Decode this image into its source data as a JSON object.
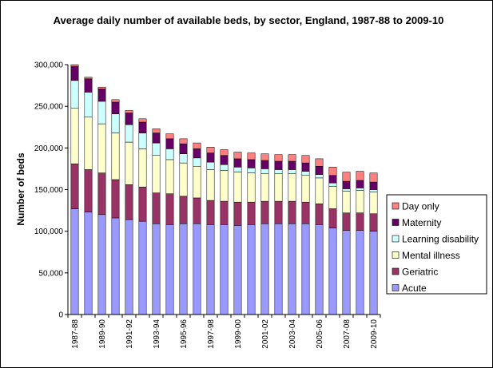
{
  "chart_data": {
    "type": "bar",
    "stacked": true,
    "title": "Average daily number of available beds, by sector, England, 1987-88 to 2009-10",
    "xlabel": "",
    "ylabel": "Number of beds",
    "ylim": [
      0,
      300000
    ],
    "yticks": [
      0,
      50000,
      100000,
      150000,
      200000,
      250000,
      300000
    ],
    "ytick_labels": [
      "0",
      "50,000",
      "100,000",
      "150,000",
      "200,000",
      "250,000",
      "300,000"
    ],
    "categories": [
      "1987-88",
      "1988-89",
      "1989-90",
      "1990-91",
      "1991-92",
      "1992-93",
      "1993-94",
      "1994-95",
      "1995-96",
      "1996-97",
      "1997-98",
      "1998-99",
      "1999-00",
      "2000-01",
      "2001-02",
      "2002-03",
      "2003-04",
      "2004-05",
      "2005-06",
      "2006-07",
      "2007-08",
      "2008-09",
      "2009-10"
    ],
    "shown_tick_labels": [
      "1987-88",
      "1989-90",
      "1991-92",
      "1993-94",
      "1995-96",
      "1997-98",
      "1999-00",
      "2001-02",
      "2003-04",
      "2005-06",
      "2007-08",
      "2009-10"
    ],
    "grid": false,
    "legend_position": "right",
    "series": [
      {
        "name": "Acute",
        "color": "#9999ff",
        "values": [
          127000,
          123000,
          120000,
          116000,
          114000,
          112000,
          109000,
          108000,
          109000,
          109000,
          108000,
          108000,
          107000,
          108000,
          109000,
          109000,
          109000,
          109000,
          108000,
          104000,
          101000,
          101000,
          100000
        ]
      },
      {
        "name": "Geriatric",
        "color": "#993366",
        "values": [
          54000,
          51000,
          50000,
          46000,
          42000,
          41000,
          37000,
          37000,
          33000,
          31000,
          29000,
          28000,
          28000,
          27000,
          27000,
          27000,
          27000,
          26000,
          25000,
          23000,
          21000,
          21000,
          21000
        ]
      },
      {
        "name": "Mental illness",
        "color": "#ffffcc",
        "values": [
          67000,
          63000,
          59000,
          56000,
          51000,
          46000,
          45000,
          41000,
          40000,
          38000,
          37000,
          37000,
          36000,
          35000,
          33000,
          33000,
          33000,
          32000,
          31000,
          27000,
          26000,
          27000,
          26000
        ]
      },
      {
        "name": "Learning disability",
        "color": "#ccffff",
        "values": [
          33000,
          30000,
          27000,
          23000,
          21000,
          19000,
          15000,
          13000,
          11000,
          10000,
          9000,
          7000,
          6000,
          6000,
          6000,
          5000,
          5000,
          5000,
          4000,
          4000,
          3000,
          3000,
          3000
        ]
      },
      {
        "name": "Maternity",
        "color": "#660066",
        "values": [
          17000,
          16000,
          15000,
          14000,
          14000,
          13000,
          12000,
          12000,
          12000,
          11000,
          11000,
          11000,
          10000,
          10000,
          10000,
          10000,
          10000,
          10000,
          10000,
          9000,
          9000,
          9000,
          9000
        ]
      },
      {
        "name": "Day only",
        "color": "#ff8080",
        "values": [
          2000,
          2000,
          2000,
          3000,
          3000,
          4000,
          5000,
          6000,
          6000,
          7000,
          7000,
          7000,
          8000,
          8000,
          8000,
          8000,
          8000,
          9000,
          9000,
          10000,
          11000,
          11000,
          11000
        ]
      }
    ]
  }
}
